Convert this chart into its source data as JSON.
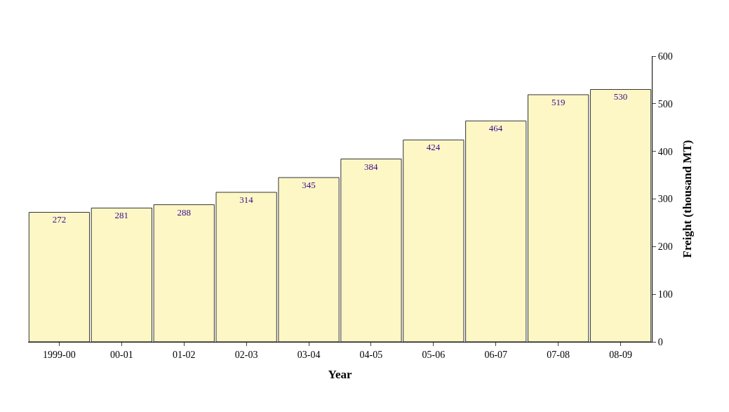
{
  "chart_data": {
    "type": "bar",
    "xlabel": "Year",
    "ylabel": "Freight (thousand MT)",
    "categories": [
      "1999-00",
      "00-01",
      "01-02",
      "02-03",
      "03-04",
      "04-05",
      "05-06",
      "06-07",
      "07-08",
      "08-09"
    ],
    "values": [
      272,
      281,
      288,
      314,
      345,
      384,
      424,
      464,
      519,
      530
    ],
    "color": "#fdf7c6",
    "data_labels": true,
    "ylim": [
      0,
      600
    ],
    "yticks": [
      0,
      100,
      200,
      300,
      400,
      500,
      600
    ]
  }
}
